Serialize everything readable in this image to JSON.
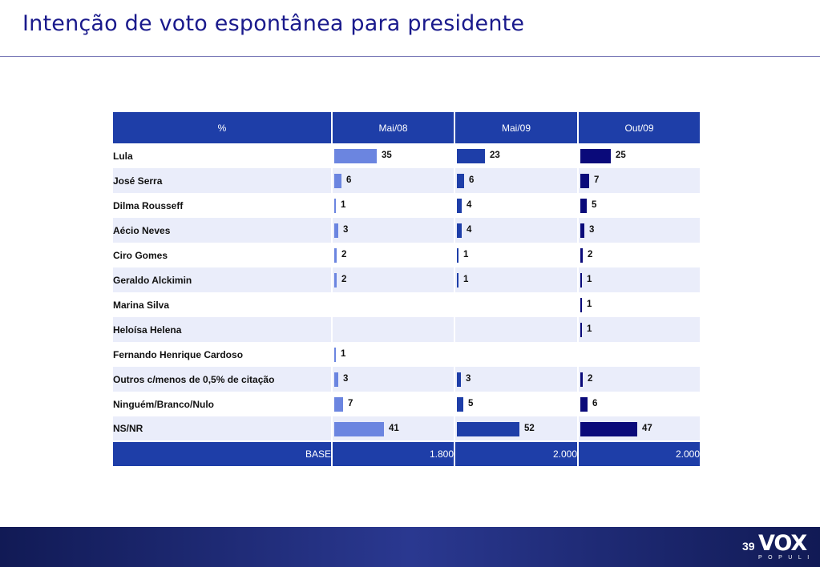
{
  "title": "Intenção de voto espontânea para presidente",
  "page_number": "39",
  "logo": {
    "word": "VOX",
    "sub": "POPULI"
  },
  "colors": {
    "mai08": "#6b85e0",
    "mai09": "#1e3ea8",
    "out09": "#0a0a7a",
    "header": "#1e3ea8",
    "title": "#1a1a8c"
  },
  "chart_data": {
    "type": "bar",
    "unit_header": "%",
    "categories": [
      "Lula",
      "José Serra",
      "Dilma Rousseff",
      "Aécio Neves",
      "Ciro Gomes",
      "Geraldo Alckimin",
      "Marina Silva",
      "Heloísa Helena",
      "Fernando Henrique Cardoso",
      "Outros c/menos de 0,5% de citação",
      "Ninguém/Branco/Nulo",
      "NS/NR"
    ],
    "series": [
      {
        "name": "Mai/08",
        "values": [
          35,
          6,
          1,
          3,
          2,
          2,
          null,
          null,
          1,
          3,
          7,
          41
        ],
        "base": "1.800"
      },
      {
        "name": "Mai/09",
        "values": [
          23,
          6,
          4,
          4,
          1,
          1,
          null,
          null,
          null,
          3,
          5,
          52
        ],
        "base": "2.000"
      },
      {
        "name": "Out/09",
        "values": [
          25,
          7,
          5,
          3,
          2,
          1,
          1,
          1,
          null,
          2,
          6,
          47
        ],
        "base": "2.000"
      }
    ],
    "base_label": "BASE",
    "scale_max": 52
  }
}
